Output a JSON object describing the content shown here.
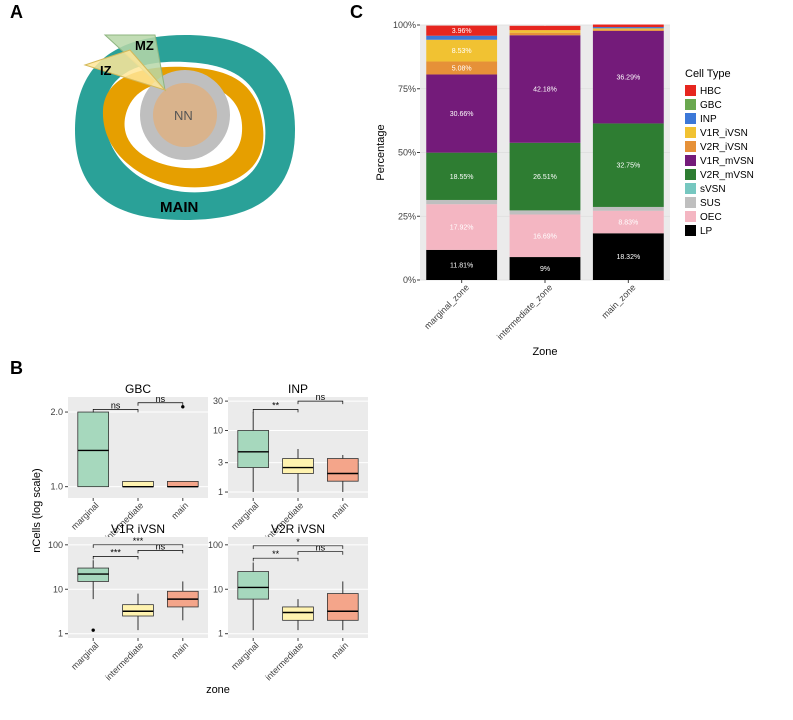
{
  "panelLabels": {
    "A": "A",
    "B": "B",
    "C": "C"
  },
  "panelA": {
    "labels": {
      "MZ": "MZ",
      "IZ": "IZ",
      "NN": "NN",
      "MAIN": "MAIN"
    },
    "colors": {
      "main_ring": "#2aa198",
      "orange_ring": "#e69f00",
      "grey_ring": "#bfbfbf",
      "inner": "#d9b38c",
      "mz_wedge": "#b7d7a8",
      "iz_wedge": "#ffe699"
    }
  },
  "panelC": {
    "title": "Zone",
    "ytitle": "Percentage",
    "yticks": [
      0,
      25,
      50,
      75,
      100
    ],
    "zones": [
      "marginal_zone",
      "intermediate_zone",
      "main_zone"
    ],
    "segments": {
      "marginal_zone": [
        {
          "key": "LP",
          "h": 11.81,
          "label": "11.81%"
        },
        {
          "key": "OEC",
          "h": 17.92,
          "label": "17.92%"
        },
        {
          "key": "SUS",
          "h": 1.66,
          "label": "1.66%"
        },
        {
          "key": "V2R_mVSN",
          "h": 18.55,
          "label": "18.55%"
        },
        {
          "key": "V1R_mVSN",
          "h": 30.66,
          "label": "30.66%"
        },
        {
          "key": "V2R_iVSN",
          "h": 5.08,
          "label": "5.08%"
        },
        {
          "key": "V1R_iVSN",
          "h": 8.53,
          "label": "8.53%"
        },
        {
          "key": "INP",
          "h": 1.59,
          "label": "1.59%"
        },
        {
          "key": "HBC",
          "h": 3.96,
          "label": "3.96%"
        }
      ],
      "intermediate_zone": [
        {
          "key": "LP",
          "h": 9,
          "label": "9%"
        },
        {
          "key": "OEC",
          "h": 16.69,
          "label": "16.69%"
        },
        {
          "key": "SUS",
          "h": 1.61,
          "label": "1.61%"
        },
        {
          "key": "V2R_mVSN",
          "h": 26.51,
          "label": "26.51%"
        },
        {
          "key": "V1R_mVSN",
          "h": 42.18,
          "label": "42.18%"
        },
        {
          "key": "V2R_iVSN",
          "h": 1.0,
          "label": ""
        },
        {
          "key": "V1R_iVSN",
          "h": 1.0,
          "label": ""
        },
        {
          "key": "HBC",
          "h": 1.69,
          "label": "1.69%"
        }
      ],
      "main_zone": [
        {
          "key": "LP",
          "h": 18.32,
          "label": "18.32%"
        },
        {
          "key": "OEC",
          "h": 8.83,
          "label": "8.83%"
        },
        {
          "key": "SUS",
          "h": 1.5,
          "label": ""
        },
        {
          "key": "V2R_mVSN",
          "h": 32.75,
          "label": "32.75%"
        },
        {
          "key": "V1R_mVSN",
          "h": 36.29,
          "label": "36.29%"
        },
        {
          "key": "V2R_iVSN",
          "h": 0.5,
          "label": ""
        },
        {
          "key": "V1R_iVSN",
          "h": 0.5,
          "label": ""
        },
        {
          "key": "INP",
          "h": 0.5,
          "label": ""
        },
        {
          "key": "HBC",
          "h": 1.0,
          "label": ""
        }
      ]
    },
    "legend_title": "Cell Type",
    "legend_items": [
      {
        "key": "HBC",
        "label": "HBC",
        "color": "#e6261f"
      },
      {
        "key": "GBC",
        "label": "GBC",
        "color": "#6aa84f"
      },
      {
        "key": "INP",
        "label": "INP",
        "color": "#3c78d8"
      },
      {
        "key": "V1R_iVSN",
        "label": "V1R_iVSN",
        "color": "#f1c232"
      },
      {
        "key": "V2R_iVSN",
        "label": "V2R_iVSN",
        "color": "#e69138"
      },
      {
        "key": "V1R_mVSN",
        "label": "V1R_mVSN",
        "color": "#741b7a"
      },
      {
        "key": "V2R_mVSN",
        "label": "V2R_mVSN",
        "color": "#2e7d32"
      },
      {
        "key": "sVSN",
        "label": "sVSN",
        "color": "#76c7c0"
      },
      {
        "key": "SUS",
        "label": "SUS",
        "color": "#bfbfbf"
      },
      {
        "key": "OEC",
        "label": "OEC",
        "color": "#f4b6c2"
      },
      {
        "key": "LP",
        "label": "LP",
        "color": "#000000"
      }
    ]
  },
  "panelB": {
    "shared_ytitle": "nCells (log scale)",
    "shared_xtitle": "zone",
    "zones": [
      "marginal",
      "intermediate",
      "main"
    ],
    "zone_colors": {
      "marginal": "#a6d8bd",
      "intermediate": "#fff3b0",
      "main": "#f4a58a"
    },
    "plots": [
      {
        "title": "GBC",
        "yticks": [
          1,
          2
        ],
        "ytick_labels": [
          "1.0",
          "2.0"
        ],
        "ylim": [
          0.9,
          2.3
        ],
        "boxes": [
          {
            "zone": "marginal",
            "min": 1.0,
            "q1": 1.0,
            "med": 1.4,
            "q3": 2.0,
            "max": 2.0,
            "outliers": []
          },
          {
            "zone": "intermediate",
            "min": 1.0,
            "q1": 1.0,
            "med": 1.0,
            "q3": 1.05,
            "max": 1.05,
            "outliers": []
          },
          {
            "zone": "main",
            "min": 1.0,
            "q1": 1.0,
            "med": 1.0,
            "q3": 1.05,
            "max": 1.05,
            "outliers": [
              2.1
            ]
          }
        ],
        "sig": [
          {
            "from": 0,
            "to": 1,
            "y": 2.05,
            "label": "ns"
          },
          {
            "from": 1,
            "to": 2,
            "y": 2.18,
            "label": "ns"
          }
        ]
      },
      {
        "title": "INP",
        "yticks": [
          1,
          3,
          10,
          30
        ],
        "ytick_labels": [
          "1",
          "3",
          "10",
          "30"
        ],
        "ylim": [
          0.8,
          35
        ],
        "boxes": [
          {
            "zone": "marginal",
            "min": 1.0,
            "q1": 2.5,
            "med": 4.5,
            "q3": 10,
            "max": 20,
            "outliers": []
          },
          {
            "zone": "intermediate",
            "min": 1.0,
            "q1": 2,
            "med": 2.5,
            "q3": 3.5,
            "max": 5,
            "outliers": []
          },
          {
            "zone": "main",
            "min": 1.0,
            "q1": 1.5,
            "med": 2.0,
            "q3": 3.5,
            "max": 4,
            "outliers": []
          }
        ],
        "sig": [
          {
            "from": 0,
            "to": 1,
            "y": 22,
            "label": "**"
          },
          {
            "from": 1,
            "to": 2,
            "y": 30,
            "label": "ns"
          }
        ]
      },
      {
        "title": "V1R iVSN",
        "yticks": [
          1,
          10,
          100
        ],
        "ytick_labels": [
          "1",
          "10",
          "100"
        ],
        "ylim": [
          0.8,
          150
        ],
        "boxes": [
          {
            "zone": "marginal",
            "min": 6,
            "q1": 15,
            "med": 22,
            "q3": 30,
            "max": 45,
            "outliers": [
              1.2
            ]
          },
          {
            "zone": "intermediate",
            "min": 1.2,
            "q1": 2.5,
            "med": 3.2,
            "q3": 4.5,
            "max": 8,
            "outliers": []
          },
          {
            "zone": "main",
            "min": 2,
            "q1": 4,
            "med": 6,
            "q3": 9,
            "max": 15,
            "outliers": []
          }
        ],
        "sig": [
          {
            "from": 0,
            "to": 1,
            "y": 55,
            "label": "***"
          },
          {
            "from": 0,
            "to": 2,
            "y": 100,
            "label": "***"
          },
          {
            "from": 1,
            "to": 2,
            "y": 75,
            "label": "ns"
          }
        ]
      },
      {
        "title": "V2R iVSN",
        "yticks": [
          1,
          10,
          100
        ],
        "ytick_labels": [
          "1",
          "10",
          "100"
        ],
        "ylim": [
          0.8,
          150
        ],
        "boxes": [
          {
            "zone": "marginal",
            "min": 1.2,
            "q1": 6,
            "med": 11,
            "q3": 25,
            "max": 40,
            "outliers": []
          },
          {
            "zone": "intermediate",
            "min": 1.2,
            "q1": 2,
            "med": 3,
            "q3": 4,
            "max": 6,
            "outliers": []
          },
          {
            "zone": "main",
            "min": 1.2,
            "q1": 2,
            "med": 3.2,
            "q3": 8,
            "max": 15,
            "outliers": []
          }
        ],
        "sig": [
          {
            "from": 0,
            "to": 1,
            "y": 50,
            "label": "**"
          },
          {
            "from": 0,
            "to": 2,
            "y": 95,
            "label": "*"
          },
          {
            "from": 1,
            "to": 2,
            "y": 70,
            "label": "ns"
          }
        ]
      }
    ]
  }
}
